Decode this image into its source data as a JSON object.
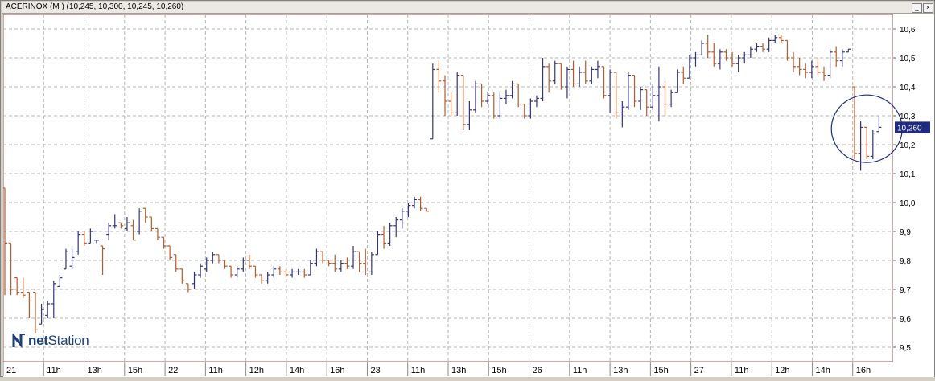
{
  "window": {
    "title": "ACERINOX (M ) (10,245, 10,300, 10,245, 10,260)",
    "buttons": [
      "_",
      "×"
    ]
  },
  "brand": {
    "logo_bold": "net",
    "logo_rest": "Station"
  },
  "colors": {
    "up": "#34347a",
    "down": "#b85a2a",
    "grid": "#b4b4b4",
    "circle": "#1a2a8a",
    "axis": "#b84a4a"
  },
  "chart_data": {
    "type": "ohlc",
    "ylim": [
      9.45,
      10.65
    ],
    "y_ticks": [
      9.5,
      9.6,
      9.7,
      9.8,
      9.9,
      10.0,
      10.1,
      10.2,
      10.3,
      10.4,
      10.5,
      10.6
    ],
    "y_tick_labels": [
      "9,5",
      "9,6",
      "9,7",
      "9,8",
      "9,9",
      "10,0",
      "10,1",
      "10,2",
      "10,3",
      "10,4",
      "10,5",
      "10,6"
    ],
    "last_price_label": "10,260",
    "last_price": 10.26,
    "grid": true,
    "x_labels": [
      "21",
      "11h",
      "13h",
      "15h",
      "22",
      "11h",
      "12h",
      "14h",
      "16h",
      "23",
      "11h",
      "13h",
      "15h",
      "26",
      "11h",
      "13h",
      "15h",
      "27",
      "11h",
      "12h",
      "14h",
      "16h"
    ],
    "annotation": {
      "type": "circle",
      "around": "27 open bars"
    },
    "bars": [
      {
        "o": 10.05,
        "h": 10.05,
        "l": 9.68,
        "c": 9.86
      },
      {
        "o": 9.86,
        "h": 9.86,
        "l": 9.68,
        "c": 9.7
      },
      {
        "o": 9.74,
        "h": 9.74,
        "l": 9.68,
        "c": 9.69
      },
      {
        "o": 9.69,
        "h": 9.74,
        "l": 9.67,
        "c": 9.68
      },
      {
        "o": 9.69,
        "h": 9.69,
        "l": 9.6,
        "c": 9.66
      },
      {
        "o": 9.69,
        "h": 9.69,
        "l": 9.55,
        "c": 9.56
      },
      {
        "o": 9.58,
        "h": 9.65,
        "l": 9.58,
        "c": 9.63
      },
      {
        "o": 9.61,
        "h": 9.66,
        "l": 9.6,
        "c": 9.65
      },
      {
        "o": 9.65,
        "h": 9.73,
        "l": 9.6,
        "c": 9.72
      },
      {
        "o": 9.71,
        "h": 9.75,
        "l": 9.71,
        "c": 9.74
      },
      {
        "o": 9.77,
        "h": 9.84,
        "l": 9.77,
        "c": 9.83
      },
      {
        "o": 9.78,
        "h": 9.84,
        "l": 9.77,
        "c": 9.81
      },
      {
        "o": 9.83,
        "h": 9.9,
        "l": 9.82,
        "c": 9.89
      },
      {
        "o": 9.89,
        "h": 9.9,
        "l": 9.85,
        "c": 9.86
      },
      {
        "o": 9.86,
        "h": 9.91,
        "l": 9.86,
        "c": 9.9
      },
      {
        "o": 9.87,
        "h": 9.87,
        "l": 9.86,
        "c": 9.87
      },
      {
        "o": 9.85,
        "h": 9.85,
        "l": 9.75,
        "c": 9.84
      },
      {
        "o": 9.89,
        "h": 9.93,
        "l": 9.87,
        "c": 9.92
      },
      {
        "o": 9.92,
        "h": 9.96,
        "l": 9.91,
        "c": 9.92
      },
      {
        "o": 9.93,
        "h": 9.93,
        "l": 9.91,
        "c": 9.92
      },
      {
        "o": 9.91,
        "h": 9.95,
        "l": 9.9,
        "c": 9.93
      },
      {
        "o": 9.92,
        "h": 9.94,
        "l": 9.87,
        "c": 9.87
      },
      {
        "o": 9.9,
        "h": 9.98,
        "l": 9.89,
        "c": 9.97
      },
      {
        "o": 9.98,
        "h": 9.98,
        "l": 9.93,
        "c": 9.95
      },
      {
        "o": 9.95,
        "h": 9.95,
        "l": 9.9,
        "c": 9.91
      },
      {
        "o": 9.91,
        "h": 9.91,
        "l": 9.87,
        "c": 9.88
      },
      {
        "o": 9.88,
        "h": 9.88,
        "l": 9.84,
        "c": 9.85
      },
      {
        "o": 9.85,
        "h": 9.85,
        "l": 9.8,
        "c": 9.81
      },
      {
        "o": 9.82,
        "h": 9.82,
        "l": 9.76,
        "c": 9.77
      },
      {
        "o": 9.77,
        "h": 9.77,
        "l": 9.72,
        "c": 9.73
      },
      {
        "o": 9.72,
        "h": 9.72,
        "l": 9.69,
        "c": 9.7
      },
      {
        "o": 9.72,
        "h": 9.76,
        "l": 9.7,
        "c": 9.75
      },
      {
        "o": 9.75,
        "h": 9.79,
        "l": 9.74,
        "c": 9.78
      },
      {
        "o": 9.77,
        "h": 9.81,
        "l": 9.76,
        "c": 9.8
      },
      {
        "o": 9.8,
        "h": 9.83,
        "l": 9.79,
        "c": 9.82
      },
      {
        "o": 9.82,
        "h": 9.82,
        "l": 9.79,
        "c": 9.8
      },
      {
        "o": 9.8,
        "h": 9.8,
        "l": 9.77,
        "c": 9.78
      },
      {
        "o": 9.78,
        "h": 9.78,
        "l": 9.74,
        "c": 9.75
      },
      {
        "o": 9.75,
        "h": 9.78,
        "l": 9.74,
        "c": 9.77
      },
      {
        "o": 9.77,
        "h": 9.81,
        "l": 9.76,
        "c": 9.8
      },
      {
        "o": 9.8,
        "h": 9.82,
        "l": 9.77,
        "c": 9.78
      },
      {
        "o": 9.78,
        "h": 9.78,
        "l": 9.74,
        "c": 9.75
      },
      {
        "o": 9.75,
        "h": 9.75,
        "l": 9.72,
        "c": 9.73
      },
      {
        "o": 9.73,
        "h": 9.76,
        "l": 9.72,
        "c": 9.75
      },
      {
        "o": 9.75,
        "h": 9.78,
        "l": 9.74,
        "c": 9.77
      },
      {
        "o": 9.77,
        "h": 9.78,
        "l": 9.75,
        "c": 9.76
      },
      {
        "o": 9.76,
        "h": 9.77,
        "l": 9.74,
        "c": 9.75
      },
      {
        "o": 9.75,
        "h": 9.77,
        "l": 9.74,
        "c": 9.76
      },
      {
        "o": 9.76,
        "h": 9.77,
        "l": 9.75,
        "c": 9.76
      },
      {
        "o": 9.76,
        "h": 9.77,
        "l": 9.74,
        "c": 9.75
      },
      {
        "o": 9.75,
        "h": 9.8,
        "l": 9.75,
        "c": 9.79
      },
      {
        "o": 9.79,
        "h": 9.84,
        "l": 9.78,
        "c": 9.83
      },
      {
        "o": 9.83,
        "h": 9.83,
        "l": 9.79,
        "c": 9.8
      },
      {
        "o": 9.8,
        "h": 9.8,
        "l": 9.78,
        "c": 9.79
      },
      {
        "o": 9.79,
        "h": 9.82,
        "l": 9.76,
        "c": 9.77
      },
      {
        "o": 9.77,
        "h": 9.8,
        "l": 9.76,
        "c": 9.79
      },
      {
        "o": 9.79,
        "h": 9.81,
        "l": 9.77,
        "c": 9.78
      },
      {
        "o": 9.78,
        "h": 9.85,
        "l": 9.77,
        "c": 9.83
      },
      {
        "o": 9.83,
        "h": 9.83,
        "l": 9.76,
        "c": 9.79
      },
      {
        "o": 9.79,
        "h": 9.84,
        "l": 9.75,
        "c": 9.76
      },
      {
        "o": 9.76,
        "h": 9.83,
        "l": 9.75,
        "c": 9.82
      },
      {
        "o": 9.82,
        "h": 9.9,
        "l": 9.82,
        "c": 9.89
      },
      {
        "o": 9.89,
        "h": 9.92,
        "l": 9.84,
        "c": 9.86
      },
      {
        "o": 9.86,
        "h": 9.93,
        "l": 9.85,
        "c": 9.92
      },
      {
        "o": 9.92,
        "h": 9.95,
        "l": 9.88,
        "c": 9.94
      },
      {
        "o": 9.94,
        "h": 9.98,
        "l": 9.91,
        "c": 9.97
      },
      {
        "o": 9.97,
        "h": 10.0,
        "l": 9.95,
        "c": 9.99
      },
      {
        "o": 9.99,
        "h": 10.02,
        "l": 9.98,
        "c": 10.01
      },
      {
        "o": 10.01,
        "h": 10.02,
        "l": 9.97,
        "c": 9.98
      },
      {
        "o": 9.98,
        "h": 9.98,
        "l": 9.97,
        "c": 9.97
      },
      {
        "o": 10.22,
        "h": 10.48,
        "l": 10.22,
        "c": 10.46
      },
      {
        "o": 10.46,
        "h": 10.49,
        "l": 10.38,
        "c": 10.42
      },
      {
        "o": 10.42,
        "h": 10.44,
        "l": 10.3,
        "c": 10.35
      },
      {
        "o": 10.35,
        "h": 10.38,
        "l": 10.3,
        "c": 10.31
      },
      {
        "o": 10.31,
        "h": 10.45,
        "l": 10.3,
        "c": 10.44
      },
      {
        "o": 10.44,
        "h": 10.44,
        "l": 10.25,
        "c": 10.27
      },
      {
        "o": 10.27,
        "h": 10.35,
        "l": 10.25,
        "c": 10.32
      },
      {
        "o": 10.32,
        "h": 10.42,
        "l": 10.31,
        "c": 10.41
      },
      {
        "o": 10.41,
        "h": 10.41,
        "l": 10.33,
        "c": 10.35
      },
      {
        "o": 10.35,
        "h": 10.38,
        "l": 10.34,
        "c": 10.37
      },
      {
        "o": 10.37,
        "h": 10.38,
        "l": 10.29,
        "c": 10.3
      },
      {
        "o": 10.3,
        "h": 10.38,
        "l": 10.29,
        "c": 10.36
      },
      {
        "o": 10.36,
        "h": 10.39,
        "l": 10.34,
        "c": 10.37
      },
      {
        "o": 10.37,
        "h": 10.42,
        "l": 10.36,
        "c": 10.41
      },
      {
        "o": 10.41,
        "h": 10.41,
        "l": 10.33,
        "c": 10.34
      },
      {
        "o": 10.34,
        "h": 10.34,
        "l": 10.29,
        "c": 10.3
      },
      {
        "o": 10.3,
        "h": 10.36,
        "l": 10.29,
        "c": 10.35
      },
      {
        "o": 10.35,
        "h": 10.37,
        "l": 10.33,
        "c": 10.36
      },
      {
        "o": 10.36,
        "h": 10.5,
        "l": 10.35,
        "c": 10.47
      },
      {
        "o": 10.47,
        "h": 10.48,
        "l": 10.38,
        "c": 10.42
      },
      {
        "o": 10.42,
        "h": 10.49,
        "l": 10.41,
        "c": 10.48
      },
      {
        "o": 10.48,
        "h": 10.48,
        "l": 10.39,
        "c": 10.4
      },
      {
        "o": 10.4,
        "h": 10.47,
        "l": 10.36,
        "c": 10.46
      },
      {
        "o": 10.46,
        "h": 10.49,
        "l": 10.4,
        "c": 10.41
      },
      {
        "o": 10.41,
        "h": 10.47,
        "l": 10.4,
        "c": 10.45
      },
      {
        "o": 10.45,
        "h": 10.49,
        "l": 10.41,
        "c": 10.42
      },
      {
        "o": 10.42,
        "h": 10.47,
        "l": 10.41,
        "c": 10.46
      },
      {
        "o": 10.46,
        "h": 10.49,
        "l": 10.43,
        "c": 10.47
      },
      {
        "o": 10.47,
        "h": 10.47,
        "l": 10.36,
        "c": 10.37
      },
      {
        "o": 10.37,
        "h": 10.46,
        "l": 10.31,
        "c": 10.45
      },
      {
        "o": 10.45,
        "h": 10.45,
        "l": 10.29,
        "c": 10.31
      },
      {
        "o": 10.31,
        "h": 10.35,
        "l": 10.26,
        "c": 10.33
      },
      {
        "o": 10.33,
        "h": 10.45,
        "l": 10.32,
        "c": 10.44
      },
      {
        "o": 10.44,
        "h": 10.44,
        "l": 10.33,
        "c": 10.35
      },
      {
        "o": 10.35,
        "h": 10.4,
        "l": 10.32,
        "c": 10.39
      },
      {
        "o": 10.39,
        "h": 10.39,
        "l": 10.3,
        "c": 10.33
      },
      {
        "o": 10.33,
        "h": 10.41,
        "l": 10.32,
        "c": 10.37
      },
      {
        "o": 10.37,
        "h": 10.47,
        "l": 10.28,
        "c": 10.4
      },
      {
        "o": 10.4,
        "h": 10.42,
        "l": 10.3,
        "c": 10.34
      },
      {
        "o": 10.34,
        "h": 10.39,
        "l": 10.33,
        "c": 10.38
      },
      {
        "o": 10.38,
        "h": 10.46,
        "l": 10.38,
        "c": 10.45
      },
      {
        "o": 10.45,
        "h": 10.47,
        "l": 10.41,
        "c": 10.43
      },
      {
        "o": 10.43,
        "h": 10.51,
        "l": 10.43,
        "c": 10.5
      },
      {
        "o": 10.5,
        "h": 10.52,
        "l": 10.47,
        "c": 10.51
      },
      {
        "o": 10.51,
        "h": 10.56,
        "l": 10.51,
        "c": 10.55
      },
      {
        "o": 10.55,
        "h": 10.58,
        "l": 10.5,
        "c": 10.52
      },
      {
        "o": 10.52,
        "h": 10.55,
        "l": 10.47,
        "c": 10.48
      },
      {
        "o": 10.48,
        "h": 10.53,
        "l": 10.46,
        "c": 10.52
      },
      {
        "o": 10.52,
        "h": 10.53,
        "l": 10.49,
        "c": 10.5
      },
      {
        "o": 10.5,
        "h": 10.52,
        "l": 10.47,
        "c": 10.48
      },
      {
        "o": 10.48,
        "h": 10.51,
        "l": 10.45,
        "c": 10.5
      },
      {
        "o": 10.5,
        "h": 10.52,
        "l": 10.48,
        "c": 10.51
      },
      {
        "o": 10.51,
        "h": 10.54,
        "l": 10.5,
        "c": 10.53
      },
      {
        "o": 10.53,
        "h": 10.55,
        "l": 10.52,
        "c": 10.54
      },
      {
        "o": 10.54,
        "h": 10.55,
        "l": 10.52,
        "c": 10.53
      },
      {
        "o": 10.53,
        "h": 10.57,
        "l": 10.52,
        "c": 10.56
      },
      {
        "o": 10.56,
        "h": 10.58,
        "l": 10.55,
        "c": 10.57
      },
      {
        "o": 10.57,
        "h": 10.58,
        "l": 10.55,
        "c": 10.56
      },
      {
        "o": 10.56,
        "h": 10.56,
        "l": 10.49,
        "c": 10.5
      },
      {
        "o": 10.5,
        "h": 10.52,
        "l": 10.45,
        "c": 10.47
      },
      {
        "o": 10.47,
        "h": 10.5,
        "l": 10.44,
        "c": 10.46
      },
      {
        "o": 10.46,
        "h": 10.48,
        "l": 10.43,
        "c": 10.45
      },
      {
        "o": 10.45,
        "h": 10.49,
        "l": 10.43,
        "c": 10.47
      },
      {
        "o": 10.47,
        "h": 10.5,
        "l": 10.44,
        "c": 10.45
      },
      {
        "o": 10.45,
        "h": 10.47,
        "l": 10.42,
        "c": 10.44
      },
      {
        "o": 10.44,
        "h": 10.53,
        "l": 10.43,
        "c": 10.52
      },
      {
        "o": 10.52,
        "h": 10.54,
        "l": 10.47,
        "c": 10.49
      },
      {
        "o": 10.49,
        "h": 10.53,
        "l": 10.47,
        "c": 10.52
      },
      {
        "o": 10.52,
        "h": 10.53,
        "l": 10.52,
        "c": 10.53
      },
      {
        "o": 10.4,
        "h": 10.4,
        "l": 10.15,
        "c": 10.17
      },
      {
        "o": 10.17,
        "h": 10.28,
        "l": 10.11,
        "c": 10.26
      },
      {
        "o": 10.26,
        "h": 10.26,
        "l": 10.15,
        "c": 10.16
      },
      {
        "o": 10.16,
        "h": 10.25,
        "l": 10.15,
        "c": 10.24
      },
      {
        "o": 10.245,
        "h": 10.3,
        "l": 10.245,
        "c": 10.26
      }
    ]
  }
}
